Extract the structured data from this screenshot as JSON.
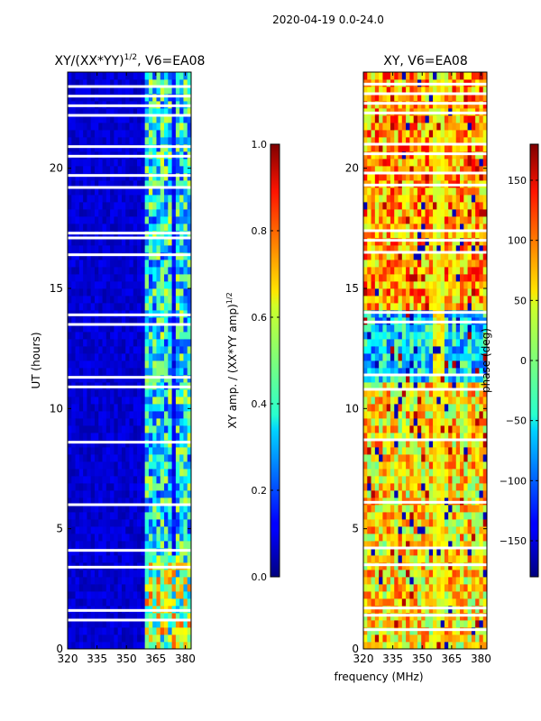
{
  "figure": {
    "suptitle": "2020-04-19 0.0-24.0",
    "xlabel": "frequency (MHz)"
  },
  "colors": {
    "background": "#ffffff",
    "axis": "#000000",
    "gap": "#ffffff"
  },
  "chart_data": [
    {
      "type": "heatmap",
      "title_main": "XY/(XX*YY)",
      "title_exp": "1/2",
      "title_suffix": ", V6=EA08",
      "xlabel": "",
      "ylabel": "UT (hours)",
      "x_range": [
        320,
        383
      ],
      "y_range": [
        0,
        24
      ],
      "x_ticks": [
        320,
        335,
        350,
        365,
        380
      ],
      "y_ticks": [
        0,
        5,
        10,
        15,
        20
      ],
      "colormap": "jet",
      "colorbar": {
        "label_main": "XY amp. / (XX*YY amp)",
        "label_exp": "1/2",
        "range": [
          0.0,
          1.0
        ],
        "ticks": [
          "0.0",
          "0.2",
          "0.4",
          "0.6",
          "0.8",
          "1.0"
        ],
        "tick_values": [
          0.0,
          0.2,
          0.4,
          0.6,
          0.8,
          1.0
        ]
      },
      "description_bands": [
        {
          "freq_range": [
            320,
            360
          ],
          "value": 0.05
        },
        {
          "freq_range": [
            360,
            383
          ],
          "value": 0.35
        }
      ],
      "gap_hours": [
        1.2,
        1.6,
        3.4,
        4.1,
        6.0,
        8.6,
        10.9,
        11.3,
        13.5,
        13.9,
        16.4,
        17.1,
        17.3,
        19.2,
        19.7,
        20.5,
        20.9,
        22.2,
        22.6,
        23.0,
        23.4
      ]
    },
    {
      "type": "heatmap",
      "title_main": "XY, V6=EA08",
      "xlabel": "",
      "ylabel": "",
      "x_range": [
        320,
        383
      ],
      "y_range": [
        0,
        24
      ],
      "x_ticks": [
        320,
        335,
        350,
        365,
        380
      ],
      "y_ticks": [
        0,
        5,
        10,
        15,
        20
      ],
      "colormap": "jet",
      "colorbar": {
        "label_main": "phase (deg)",
        "range": [
          -180,
          180
        ],
        "ticks": [
          "−150",
          "−100",
          "−50",
          "0",
          "50",
          "100",
          "150"
        ],
        "tick_values": [
          -150,
          -100,
          -50,
          0,
          50,
          100,
          150
        ]
      },
      "gap_hours": [
        0.8,
        1.4,
        1.7,
        3.5,
        4.2,
        6.1,
        8.7,
        10.8,
        11.4,
        13.6,
        14.0,
        16.5,
        17.0,
        17.4,
        19.3,
        19.8,
        20.6,
        21.0,
        22.3,
        22.7,
        23.1,
        23.5
      ]
    }
  ]
}
